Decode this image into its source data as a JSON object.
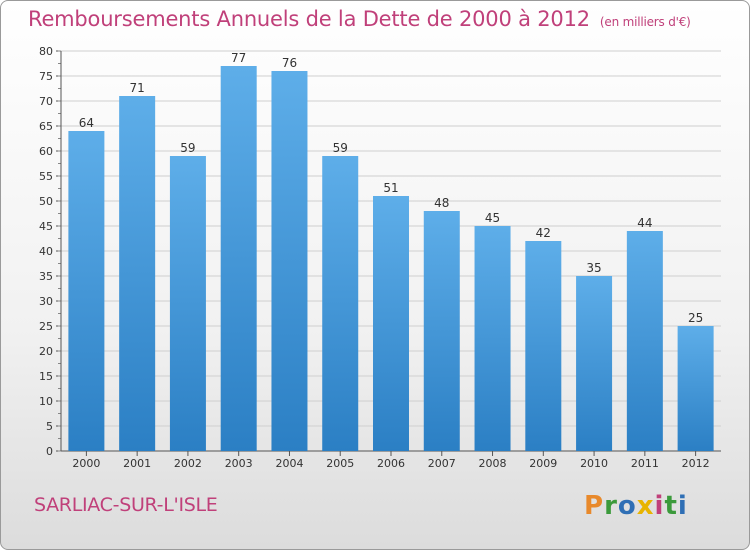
{
  "title": "Remboursements Annuels de la Dette de 2000 à 2012",
  "unit": "(en milliers d'€)",
  "commune": "SARLIAC-SUR-L'ISLE",
  "logo": "Proxiti",
  "logo_colors": [
    "#e8892b",
    "#3b9a3b",
    "#2f6fb5",
    "#e8b400",
    "#c0407a",
    "#3b9a3b",
    "#2f6fb5"
  ],
  "colors": {
    "title": "#c0407a",
    "bar_top": "#5eaee9",
    "bar_bottom": "#2b7fc4",
    "grid": "#cfcfcf"
  },
  "chart_data": {
    "type": "bar",
    "categories": [
      "2000",
      "2001",
      "2002",
      "2003",
      "2004",
      "2005",
      "2006",
      "2007",
      "2008",
      "2009",
      "2010",
      "2011",
      "2012"
    ],
    "values": [
      64,
      71,
      59,
      77,
      76,
      59,
      51,
      48,
      45,
      42,
      35,
      44,
      25
    ],
    "ylim": [
      0,
      80
    ],
    "yticks": [
      0,
      5,
      10,
      15,
      20,
      25,
      30,
      35,
      40,
      45,
      50,
      55,
      60,
      65,
      70,
      75,
      80
    ],
    "grid": true
  }
}
